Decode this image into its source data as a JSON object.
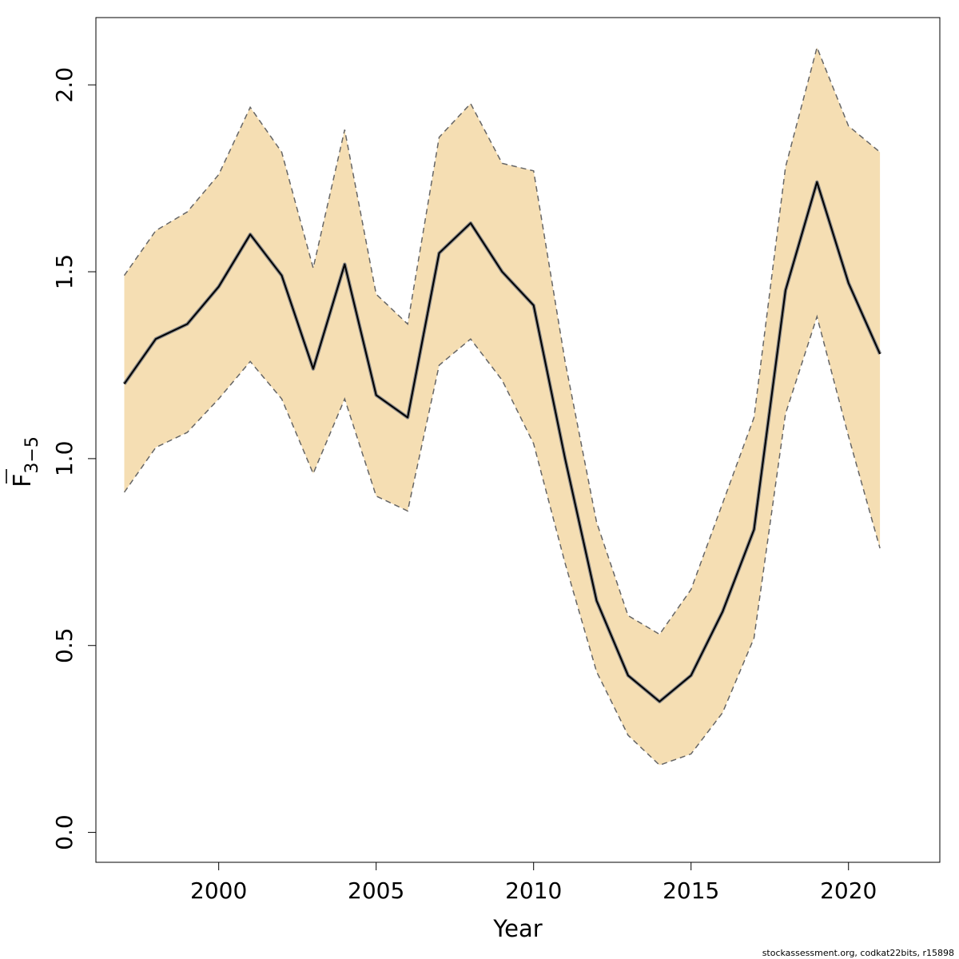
{
  "chart_data": {
    "type": "line",
    "title": "",
    "xlabel": "Year",
    "ylabel": "F",
    "ylabel_subscript": "3−5",
    "xlim": [
      1996.1,
      2022.9
    ],
    "ylim": [
      -0.08,
      2.18
    ],
    "x_ticks": [
      2000,
      2005,
      2010,
      2015,
      2020
    ],
    "y_ticks": [
      0.0,
      0.5,
      1.0,
      1.5,
      2.0
    ],
    "y_tick_labels": [
      "0.0",
      "0.5",
      "1.0",
      "1.5",
      "2.0"
    ],
    "grid": false,
    "legend": "none",
    "colors": {
      "band_fill": "#f5deb3",
      "estimate_line": "#000000",
      "bound_line": "#666666",
      "axis": "#000000"
    },
    "x": [
      1997,
      1998,
      1999,
      2000,
      2001,
      2002,
      2003,
      2004,
      2005,
      2006,
      2007,
      2008,
      2009,
      2010,
      2011,
      2012,
      2013,
      2014,
      2015,
      2016,
      2017,
      2018,
      2019,
      2020,
      2021
    ],
    "series": [
      {
        "role": "estimate",
        "values": [
          1.2,
          1.32,
          1.36,
          1.46,
          1.6,
          1.49,
          1.24,
          1.52,
          1.17,
          1.11,
          1.55,
          1.63,
          1.5,
          1.41,
          1.0,
          0.62,
          0.42,
          0.35,
          0.42,
          0.59,
          0.81,
          1.45,
          1.74,
          1.47,
          1.28
        ]
      },
      {
        "role": "upper",
        "values": [
          1.49,
          1.61,
          1.66,
          1.76,
          1.94,
          1.82,
          1.51,
          1.88,
          1.44,
          1.36,
          1.86,
          1.95,
          1.79,
          1.77,
          1.26,
          0.83,
          0.58,
          0.53,
          0.65,
          0.88,
          1.11,
          1.78,
          2.1,
          1.89,
          1.82
        ]
      },
      {
        "role": "lower",
        "values": [
          0.91,
          1.03,
          1.07,
          1.16,
          1.26,
          1.16,
          0.96,
          1.16,
          0.9,
          0.86,
          1.25,
          1.32,
          1.21,
          1.04,
          0.72,
          0.43,
          0.26,
          0.18,
          0.21,
          0.32,
          0.52,
          1.12,
          1.38,
          1.06,
          0.76
        ]
      }
    ]
  },
  "footer": {
    "credit": "stockassessment.org, codkat22bits, r15898"
  }
}
